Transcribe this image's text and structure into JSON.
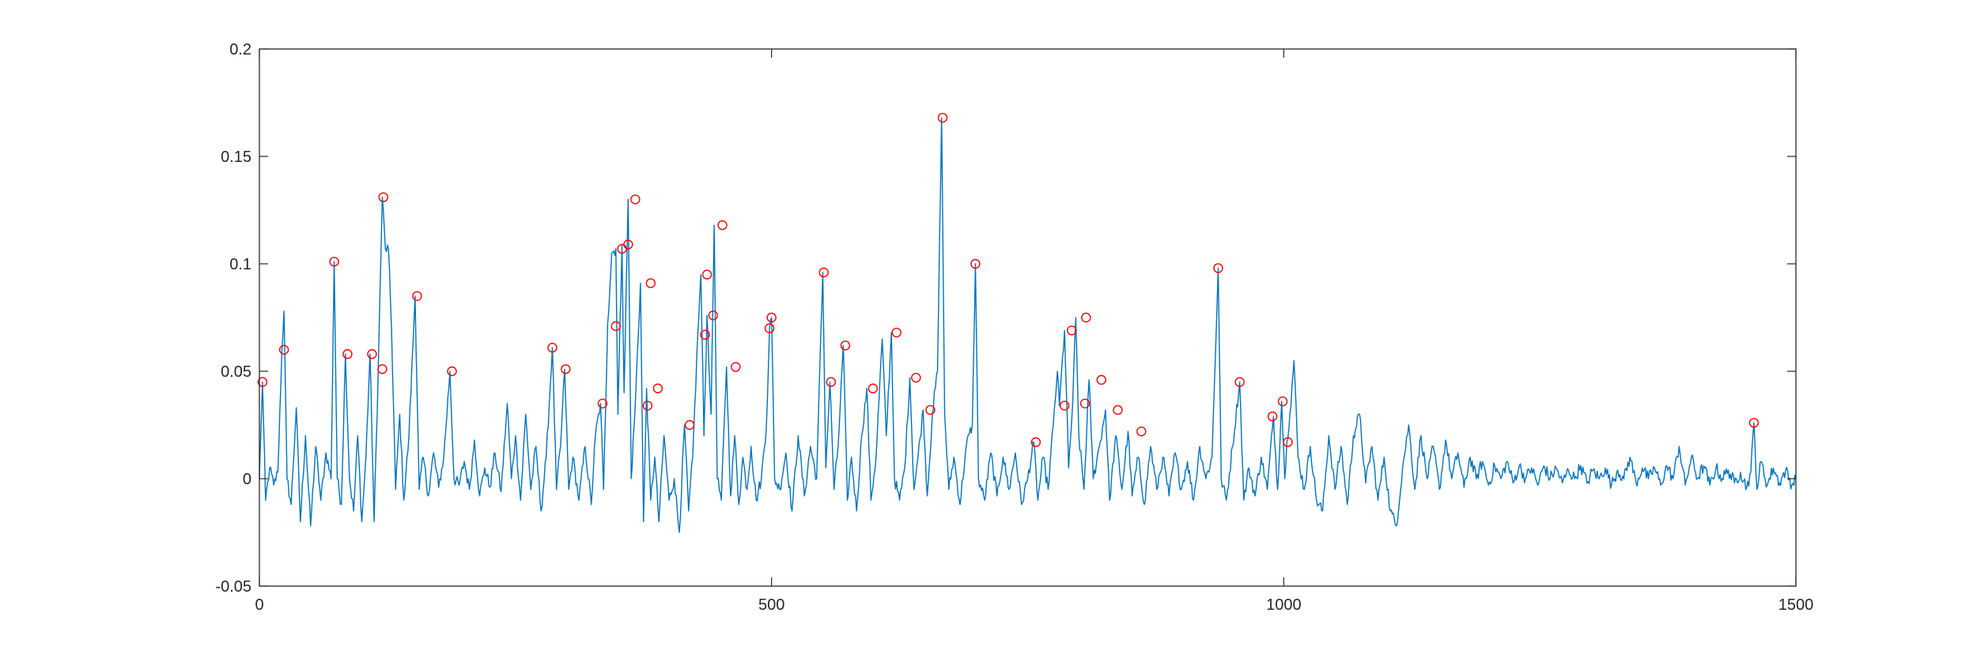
{
  "chart_data": {
    "type": "line",
    "title": "",
    "xlabel": "",
    "ylabel": "",
    "xlim": [
      0,
      1500
    ],
    "ylim": [
      -0.05,
      0.2
    ],
    "x_ticks": [
      0,
      500,
      1000,
      1500
    ],
    "y_ticks": [
      -0.05,
      0,
      0.05,
      0.1,
      0.15,
      0.2
    ],
    "x_tick_labels": [
      "0",
      "500",
      "1000",
      "1500"
    ],
    "y_tick_labels": [
      "-0.05",
      "0",
      "0.05",
      "0.1",
      "0.15",
      "0.2"
    ],
    "grid": false,
    "box": true,
    "colors": {
      "signal": "#0072BD",
      "peaks": "#FF0000",
      "axes": "#262626"
    },
    "signal_anchors": [
      [
        0,
        0.0
      ],
      [
        3,
        0.045
      ],
      [
        6,
        -0.01
      ],
      [
        10,
        0.005
      ],
      [
        14,
        -0.003
      ],
      [
        18,
        0.003
      ],
      [
        22,
        0.06
      ],
      [
        24,
        0.078
      ],
      [
        27,
        0.0
      ],
      [
        31,
        -0.012
      ],
      [
        36,
        0.033
      ],
      [
        40,
        -0.02
      ],
      [
        45,
        0.02
      ],
      [
        50,
        -0.022
      ],
      [
        55,
        0.015
      ],
      [
        60,
        -0.01
      ],
      [
        65,
        0.012
      ],
      [
        70,
        0.0
      ],
      [
        73,
        0.101
      ],
      [
        76,
        0.0
      ],
      [
        80,
        -0.012
      ],
      [
        84,
        0.058
      ],
      [
        88,
        0.0
      ],
      [
        92,
        -0.015
      ],
      [
        96,
        0.02
      ],
      [
        100,
        -0.02
      ],
      [
        104,
        0.01
      ],
      [
        108,
        0.058
      ],
      [
        112,
        -0.02
      ],
      [
        116,
        0.05
      ],
      [
        120,
        0.131
      ],
      [
        123,
        0.107
      ],
      [
        126,
        0.107
      ],
      [
        129,
        0.07
      ],
      [
        133,
        -0.005
      ],
      [
        137,
        0.03
      ],
      [
        141,
        -0.01
      ],
      [
        146,
        0.02
      ],
      [
        152,
        0.085
      ],
      [
        156,
        -0.005
      ],
      [
        160,
        0.01
      ],
      [
        165,
        -0.008
      ],
      [
        170,
        0.012
      ],
      [
        175,
        -0.004
      ],
      [
        180,
        0.01
      ],
      [
        186,
        0.05
      ],
      [
        190,
        0.0
      ],
      [
        195,
        -0.003
      ],
      [
        200,
        0.008
      ],
      [
        205,
        -0.005
      ],
      [
        210,
        0.018
      ],
      [
        215,
        -0.008
      ],
      [
        220,
        0.005
      ],
      [
        225,
        -0.004
      ],
      [
        230,
        0.012
      ],
      [
        236,
        -0.006
      ],
      [
        242,
        0.035
      ],
      [
        246,
        0.0
      ],
      [
        250,
        0.02
      ],
      [
        255,
        -0.01
      ],
      [
        260,
        0.03
      ],
      [
        265,
        -0.005
      ],
      [
        270,
        0.015
      ],
      [
        275,
        -0.015
      ],
      [
        280,
        0.01
      ],
      [
        286,
        0.061
      ],
      [
        290,
        -0.005
      ],
      [
        294,
        0.015
      ],
      [
        298,
        0.051
      ],
      [
        302,
        -0.005
      ],
      [
        306,
        0.01
      ],
      [
        312,
        -0.01
      ],
      [
        318,
        0.015
      ],
      [
        324,
        -0.012
      ],
      [
        328,
        0.02
      ],
      [
        333,
        0.035
      ],
      [
        336,
        -0.005
      ],
      [
        340,
        0.072
      ],
      [
        344,
        0.105
      ],
      [
        348,
        0.107
      ],
      [
        350,
        0.03
      ],
      [
        354,
        0.109
      ],
      [
        356,
        0.04
      ],
      [
        360,
        0.13
      ],
      [
        363,
        0.0
      ],
      [
        367,
        0.035
      ],
      [
        372,
        0.091
      ],
      [
        375,
        -0.02
      ],
      [
        378,
        0.042
      ],
      [
        382,
        -0.01
      ],
      [
        386,
        0.01
      ],
      [
        390,
        -0.02
      ],
      [
        395,
        0.02
      ],
      [
        400,
        -0.01
      ],
      [
        405,
        0.0
      ],
      [
        410,
        -0.025
      ],
      [
        415,
        0.025
      ],
      [
        419,
        -0.015
      ],
      [
        423,
        0.01
      ],
      [
        428,
        0.067
      ],
      [
        431,
        0.095
      ],
      [
        434,
        0.02
      ],
      [
        437,
        0.076
      ],
      [
        441,
        0.03
      ],
      [
        444,
        0.118
      ],
      [
        447,
        0.0
      ],
      [
        451,
        -0.01
      ],
      [
        456,
        0.052
      ],
      [
        460,
        -0.008
      ],
      [
        464,
        0.02
      ],
      [
        468,
        -0.012
      ],
      [
        472,
        0.01
      ],
      [
        476,
        -0.005
      ],
      [
        480,
        0.015
      ],
      [
        485,
        -0.01
      ],
      [
        490,
        0.0
      ],
      [
        495,
        0.025
      ],
      [
        498,
        0.07
      ],
      [
        500,
        0.075
      ],
      [
        503,
        0.0
      ],
      [
        508,
        -0.005
      ],
      [
        514,
        0.012
      ],
      [
        520,
        -0.015
      ],
      [
        526,
        0.02
      ],
      [
        532,
        -0.008
      ],
      [
        538,
        0.015
      ],
      [
        544,
        0.0
      ],
      [
        550,
        0.096
      ],
      [
        553,
        0.005
      ],
      [
        557,
        0.045
      ],
      [
        561,
        -0.005
      ],
      [
        565,
        0.015
      ],
      [
        570,
        0.062
      ],
      [
        574,
        -0.01
      ],
      [
        578,
        0.01
      ],
      [
        583,
        -0.015
      ],
      [
        588,
        0.02
      ],
      [
        593,
        0.042
      ],
      [
        597,
        -0.01
      ],
      [
        602,
        0.01
      ],
      [
        608,
        0.065
      ],
      [
        612,
        0.02
      ],
      [
        617,
        0.068
      ],
      [
        620,
        0.0
      ],
      [
        625,
        -0.01
      ],
      [
        630,
        0.005
      ],
      [
        635,
        0.047
      ],
      [
        639,
        -0.005
      ],
      [
        643,
        0.01
      ],
      [
        648,
        0.032
      ],
      [
        652,
        -0.008
      ],
      [
        657,
        0.03
      ],
      [
        662,
        0.05
      ],
      [
        666,
        0.168
      ],
      [
        669,
        0.03
      ],
      [
        673,
        -0.005
      ],
      [
        678,
        0.01
      ],
      [
        684,
        -0.012
      ],
      [
        690,
        0.015
      ],
      [
        696,
        0.025
      ],
      [
        699,
        0.1
      ],
      [
        702,
        0.0
      ],
      [
        708,
        -0.01
      ],
      [
        714,
        0.012
      ],
      [
        720,
        -0.008
      ],
      [
        726,
        0.01
      ],
      [
        732,
        -0.005
      ],
      [
        738,
        0.012
      ],
      [
        744,
        -0.012
      ],
      [
        750,
        0.0
      ],
      [
        756,
        0.017
      ],
      [
        760,
        -0.01
      ],
      [
        765,
        0.01
      ],
      [
        770,
        -0.005
      ],
      [
        775,
        0.025
      ],
      [
        779,
        0.05
      ],
      [
        781,
        0.034
      ],
      [
        786,
        0.069
      ],
      [
        790,
        0.005
      ],
      [
        794,
        0.035
      ],
      [
        797,
        0.075
      ],
      [
        800,
        0.02
      ],
      [
        805,
        -0.005
      ],
      [
        810,
        0.046
      ],
      [
        814,
        0.0
      ],
      [
        820,
        0.015
      ],
      [
        826,
        0.032
      ],
      [
        830,
        -0.01
      ],
      [
        836,
        0.02
      ],
      [
        842,
        -0.005
      ],
      [
        848,
        0.022
      ],
      [
        852,
        -0.008
      ],
      [
        858,
        0.01
      ],
      [
        864,
        -0.012
      ],
      [
        870,
        0.015
      ],
      [
        876,
        -0.005
      ],
      [
        882,
        0.01
      ],
      [
        888,
        -0.008
      ],
      [
        894,
        0.012
      ],
      [
        900,
        -0.005
      ],
      [
        906,
        0.008
      ],
      [
        912,
        -0.01
      ],
      [
        918,
        0.015
      ],
      [
        924,
        0.0
      ],
      [
        930,
        0.01
      ],
      [
        936,
        0.098
      ],
      [
        939,
        0.0
      ],
      [
        944,
        -0.01
      ],
      [
        950,
        0.015
      ],
      [
        957,
        0.045
      ],
      [
        961,
        -0.01
      ],
      [
        966,
        0.005
      ],
      [
        972,
        -0.008
      ],
      [
        978,
        0.01
      ],
      [
        984,
        -0.005
      ],
      [
        990,
        0.029
      ],
      [
        994,
        -0.005
      ],
      [
        998,
        0.036
      ],
      [
        1001,
        0.0
      ],
      [
        1003,
        0.017
      ],
      [
        1006,
        0.03
      ],
      [
        1010,
        0.055
      ],
      [
        1014,
        0.01
      ],
      [
        1020,
        -0.005
      ],
      [
        1026,
        0.015
      ],
      [
        1032,
        -0.01
      ],
      [
        1038,
        -0.015
      ],
      [
        1044,
        0.02
      ],
      [
        1050,
        -0.005
      ],
      [
        1056,
        0.015
      ],
      [
        1062,
        -0.012
      ],
      [
        1068,
        0.02
      ],
      [
        1074,
        0.03
      ],
      [
        1080,
        -0.002
      ],
      [
        1086,
        0.015
      ],
      [
        1092,
        -0.01
      ],
      [
        1098,
        0.01
      ],
      [
        1104,
        -0.015
      ],
      [
        1110,
        -0.022
      ],
      [
        1116,
        0.005
      ],
      [
        1122,
        0.025
      ],
      [
        1128,
        -0.005
      ],
      [
        1134,
        0.02
      ],
      [
        1140,
        0.0
      ],
      [
        1146,
        0.015
      ],
      [
        1152,
        -0.005
      ],
      [
        1158,
        0.018
      ],
      [
        1164,
        0.0
      ],
      [
        1170,
        0.012
      ],
      [
        1176,
        -0.004
      ],
      [
        1182,
        0.01
      ],
      [
        1188,
        0.0
      ],
      [
        1194,
        0.008
      ],
      [
        1200,
        -0.003
      ],
      [
        1206,
        0.006
      ],
      [
        1212,
        0.0
      ],
      [
        1218,
        0.008
      ],
      [
        1224,
        -0.002
      ],
      [
        1230,
        0.006
      ],
      [
        1236,
        0.0
      ],
      [
        1242,
        0.005
      ],
      [
        1248,
        -0.003
      ],
      [
        1254,
        0.006
      ],
      [
        1260,
        0.0
      ],
      [
        1266,
        0.005
      ],
      [
        1272,
        -0.002
      ],
      [
        1278,
        0.004
      ],
      [
        1284,
        0.0
      ],
      [
        1290,
        0.006
      ],
      [
        1296,
        -0.002
      ],
      [
        1302,
        0.004
      ],
      [
        1308,
        0.0
      ],
      [
        1314,
        0.005
      ],
      [
        1320,
        -0.003
      ],
      [
        1326,
        0.004
      ],
      [
        1332,
        0.0
      ],
      [
        1338,
        0.01
      ],
      [
        1344,
        -0.002
      ],
      [
        1350,
        0.005
      ],
      [
        1356,
        0.0
      ],
      [
        1362,
        0.005
      ],
      [
        1368,
        -0.003
      ],
      [
        1374,
        0.006
      ],
      [
        1380,
        0.0
      ],
      [
        1386,
        0.015
      ],
      [
        1392,
        -0.003
      ],
      [
        1398,
        0.01
      ],
      [
        1404,
        0.0
      ],
      [
        1410,
        0.006
      ],
      [
        1416,
        -0.003
      ],
      [
        1422,
        0.005
      ],
      [
        1428,
        0.0
      ],
      [
        1434,
        0.004
      ],
      [
        1440,
        -0.002
      ],
      [
        1446,
        0.003
      ],
      [
        1452,
        -0.004
      ],
      [
        1456,
        0.003
      ],
      [
        1459,
        0.026
      ],
      [
        1462,
        -0.005
      ],
      [
        1466,
        0.008
      ],
      [
        1472,
        -0.003
      ],
      [
        1478,
        0.005
      ],
      [
        1484,
        -0.002
      ],
      [
        1490,
        0.004
      ],
      [
        1496,
        -0.003
      ],
      [
        1500,
        0.0
      ]
    ],
    "peaks": [
      [
        3,
        0.045
      ],
      [
        24,
        0.06
      ],
      [
        73,
        0.101
      ],
      [
        86,
        0.058
      ],
      [
        110,
        0.058
      ],
      [
        120,
        0.051
      ],
      [
        121,
        0.131
      ],
      [
        154,
        0.085
      ],
      [
        188,
        0.05
      ],
      [
        286,
        0.061
      ],
      [
        299,
        0.051
      ],
      [
        335,
        0.035
      ],
      [
        348,
        0.071
      ],
      [
        354,
        0.107
      ],
      [
        360,
        0.109
      ],
      [
        367,
        0.13
      ],
      [
        379,
        0.034
      ],
      [
        382,
        0.091
      ],
      [
        389,
        0.042
      ],
      [
        420,
        0.025
      ],
      [
        435,
        0.067
      ],
      [
        437,
        0.095
      ],
      [
        443,
        0.076
      ],
      [
        452,
        0.118
      ],
      [
        465,
        0.052
      ],
      [
        498,
        0.07
      ],
      [
        500,
        0.075
      ],
      [
        551,
        0.096
      ],
      [
        558,
        0.045
      ],
      [
        572,
        0.062
      ],
      [
        599,
        0.042
      ],
      [
        622,
        0.068
      ],
      [
        641,
        0.047
      ],
      [
        655,
        0.032
      ],
      [
        667,
        0.168
      ],
      [
        699,
        0.1
      ],
      [
        758,
        0.017
      ],
      [
        786,
        0.034
      ],
      [
        793,
        0.069
      ],
      [
        806,
        0.035
      ],
      [
        807,
        0.075
      ],
      [
        822,
        0.046
      ],
      [
        838,
        0.032
      ],
      [
        861,
        0.022
      ],
      [
        936,
        0.098
      ],
      [
        957,
        0.045
      ],
      [
        989,
        0.029
      ],
      [
        999,
        0.036
      ],
      [
        1004,
        0.017
      ],
      [
        1459,
        0.026
      ]
    ]
  }
}
